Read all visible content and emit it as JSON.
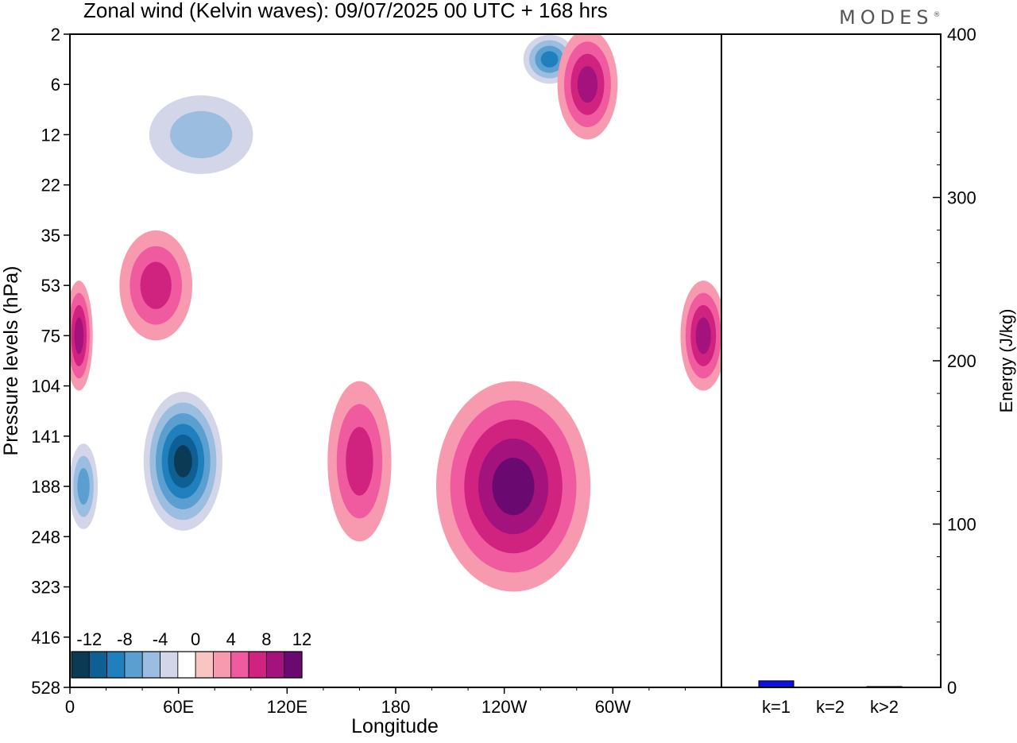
{
  "brand": "MODES",
  "brand_mark": "®",
  "chart_data": [
    {
      "type": "heatmap",
      "title": "Zonal wind (Kelvin waves):  09/07/2025  00 UTC  + 168 hrs",
      "xlabel": "Longitude",
      "ylabel": "Pressure levels (hPa)",
      "x_ticks": [
        "0",
        "60E",
        "120E",
        "180",
        "120W",
        "60W"
      ],
      "x_tick_values": [
        0,
        60,
        120,
        180,
        240,
        300
      ],
      "xlim": [
        0,
        360
      ],
      "y_ticks": [
        "2",
        "6",
        "12",
        "22",
        "35",
        "53",
        "75",
        "104",
        "141",
        "188",
        "248",
        "323",
        "416",
        "528"
      ],
      "colorbar": {
        "labels": [
          "-12",
          "-8",
          "-4",
          "0",
          "4",
          "8",
          "12"
        ],
        "levels": [
          -14,
          -12,
          -10,
          -8,
          -6,
          -4,
          -2,
          2,
          4,
          6,
          8,
          10,
          12,
          14
        ],
        "colors": [
          "#0b3a55",
          "#0e5f93",
          "#1f80bd",
          "#5a9fd0",
          "#9bbde0",
          "#d3d6e8",
          "#ffffff",
          "#f9c5c2",
          "#f79aaf",
          "#f05ba0",
          "#d0237f",
          "#a3127d",
          "#6a0a70"
        ]
      },
      "features": [
        {
          "sign": "negative",
          "peak": -14,
          "lon": [
            40,
            85
          ],
          "level": [
            104,
            248
          ]
        },
        {
          "sign": "negative",
          "peak": -8,
          "lon": [
            0,
            15
          ],
          "level": [
            141,
            248
          ]
        },
        {
          "sign": "negative",
          "peak": -6,
          "lon": [
            35,
            110
          ],
          "level": [
            6,
            22
          ]
        },
        {
          "sign": "negative",
          "peak": -10,
          "lon": [
            250,
            280
          ],
          "level": [
            2,
            6
          ]
        },
        {
          "sign": "positive",
          "peak": 10,
          "lon": [
            205,
            285
          ],
          "level": [
            104,
            323
          ]
        },
        {
          "sign": "positive",
          "peak": 6,
          "lon": [
            145,
            175
          ],
          "level": [
            104,
            248
          ]
        },
        {
          "sign": "positive",
          "peak": 8,
          "lon": [
            0,
            10
          ],
          "level": [
            53,
            104
          ]
        },
        {
          "sign": "positive",
          "peak": 6,
          "lon": [
            30,
            65
          ],
          "level": [
            35,
            75
          ]
        },
        {
          "sign": "positive",
          "peak": 8,
          "lon": [
            272,
            300
          ],
          "level": [
            2,
            12
          ]
        },
        {
          "sign": "positive",
          "peak": 8,
          "lon": [
            340,
            360
          ],
          "level": [
            53,
            104
          ]
        }
      ]
    },
    {
      "type": "bar",
      "categories": [
        "k=1",
        "k=2",
        "k>2"
      ],
      "values": [
        4,
        0.2,
        0.5
      ],
      "ylabel": "Energy (J/kg)",
      "ylim": [
        0,
        400
      ],
      "y_ticks": [
        "0",
        "100",
        "200",
        "300",
        "400"
      ],
      "bar_color": "#1010e0"
    }
  ]
}
